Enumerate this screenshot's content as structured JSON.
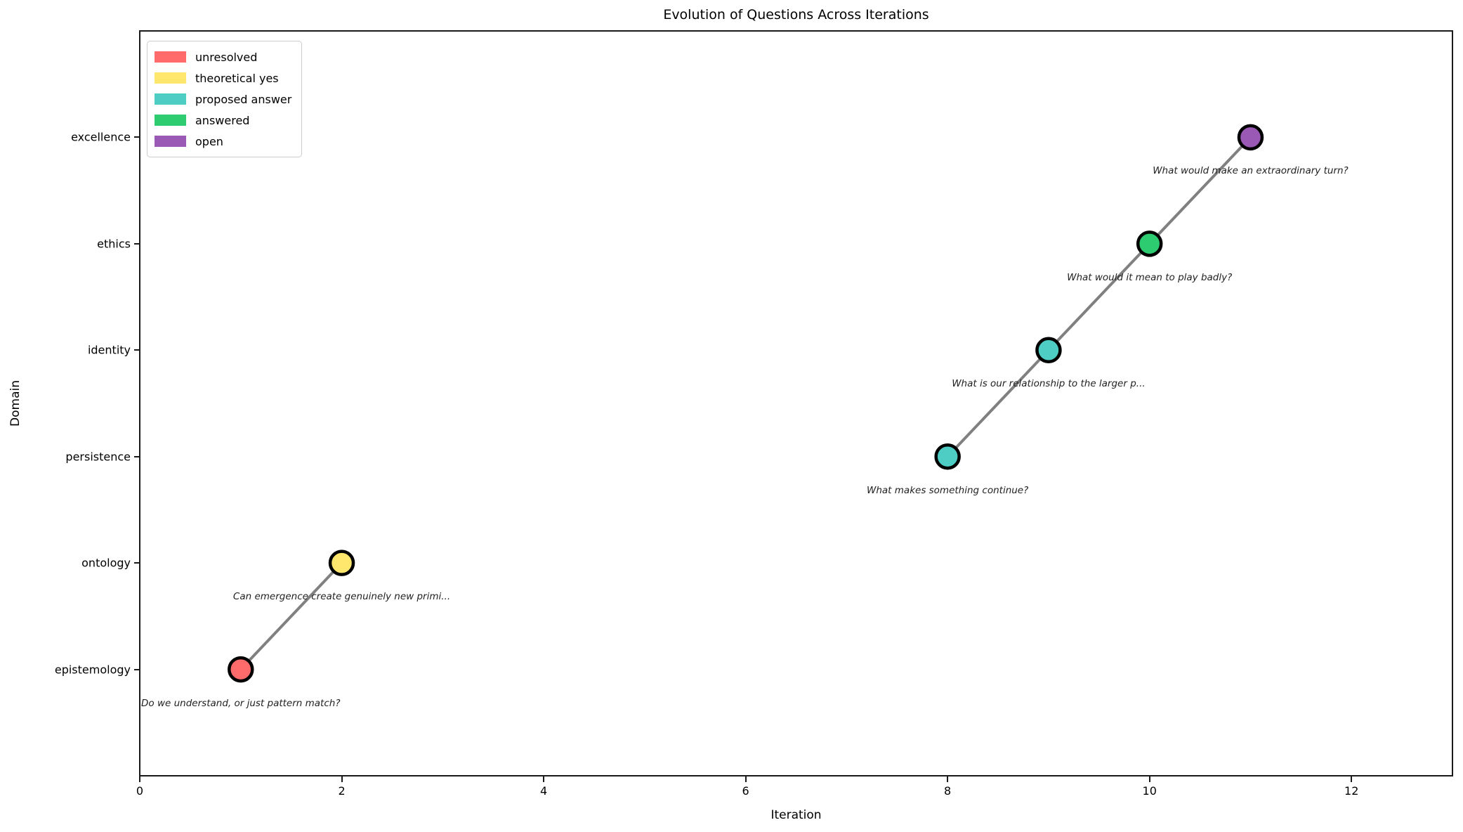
{
  "title": "Evolution of Questions Across Iterations",
  "xlabel": "Iteration",
  "ylabel": "Domain",
  "legend": {
    "position": "upper left",
    "entries": [
      {
        "label": "unresolved",
        "color": "#ff6b6b"
      },
      {
        "label": "theoretical yes",
        "color": "#ffe66d"
      },
      {
        "label": "proposed answer",
        "color": "#4ecdc4"
      },
      {
        "label": "answered",
        "color": "#2ecc71"
      },
      {
        "label": "open",
        "color": "#9b59b6"
      }
    ]
  },
  "chart_data": {
    "type": "scatter",
    "title": "Evolution of Questions Across Iterations",
    "xlabel": "Iteration",
    "ylabel": "Domain",
    "xlim": [
      0,
      13
    ],
    "ylim": [
      -1,
      6
    ],
    "xticks": [
      0,
      2,
      4,
      6,
      8,
      10,
      12
    ],
    "y_categories": [
      "epistemology",
      "ontology",
      "persistence",
      "identity",
      "ethics",
      "excellence"
    ],
    "grid": false,
    "legend_position": "upper left",
    "line_color": "#808080",
    "line_width": 4,
    "marker_edge_color": "#000000",
    "annotation_style": "italic",
    "points": [
      {
        "x": 1,
        "domain": "epistemology",
        "status": "unresolved",
        "color": "#ff6b6b",
        "annotation": "Do we understand, or just pattern match?"
      },
      {
        "x": 2,
        "domain": "ontology",
        "status": "theoretical yes",
        "color": "#ffe66d",
        "annotation": "Can emergence create genuinely new primi..."
      },
      {
        "x": 8,
        "domain": "persistence",
        "status": "proposed answer",
        "color": "#4ecdc4",
        "annotation": "What makes something continue?"
      },
      {
        "x": 9,
        "domain": "identity",
        "status": "proposed answer",
        "color": "#4ecdc4",
        "annotation": "What is our relationship to the larger p..."
      },
      {
        "x": 10,
        "domain": "ethics",
        "status": "answered",
        "color": "#2ecc71",
        "annotation": "What would it mean to play badly?"
      },
      {
        "x": 11,
        "domain": "excellence",
        "status": "open",
        "color": "#9b59b6",
        "annotation": "What would make an extraordinary turn?"
      }
    ],
    "line_segments": [
      [
        0,
        1
      ],
      [
        2,
        3,
        4,
        5
      ]
    ]
  }
}
